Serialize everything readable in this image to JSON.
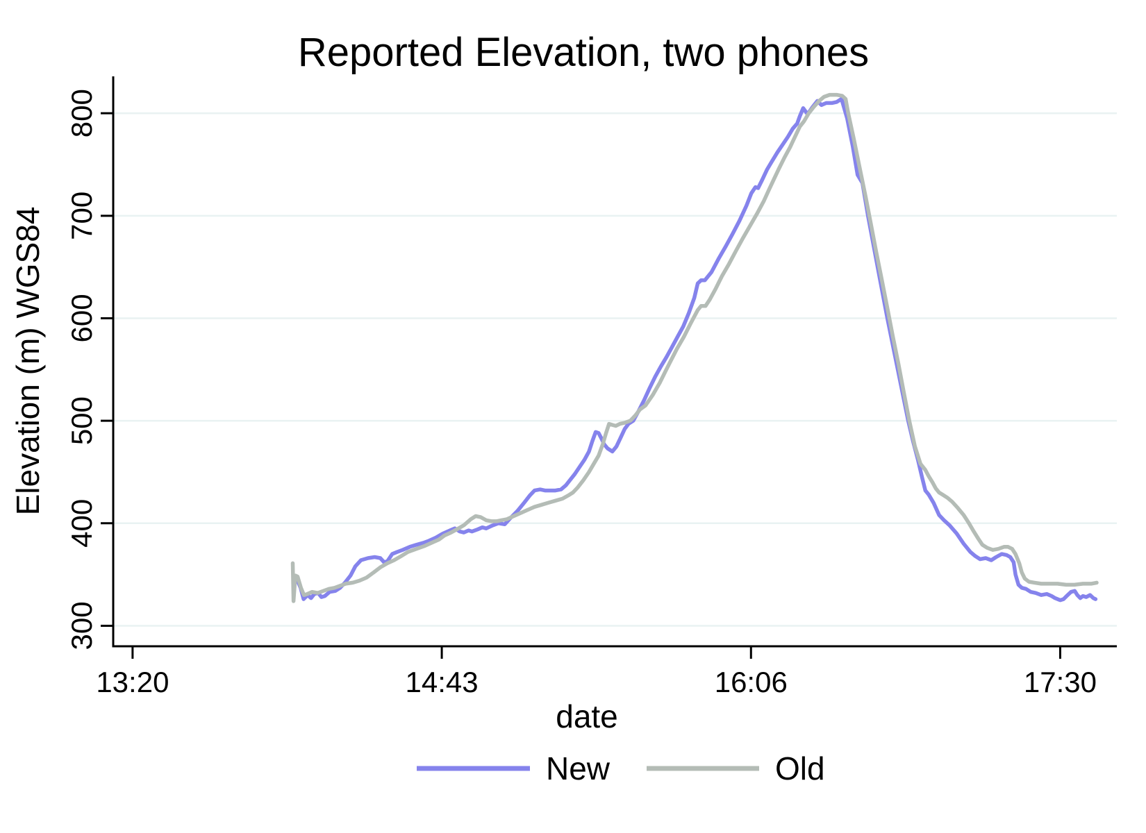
{
  "title": "Reported Elevation, two phones",
  "colors": {
    "title": "#1e3557",
    "axis": "#000000",
    "grid": "#e9f2f2",
    "new_line": "#8583ec",
    "old_line": "#b4bcb6"
  },
  "chart_data": {
    "type": "line",
    "title": "Reported Elevation, two phones",
    "xlabel": "date",
    "ylabel": "Elevation (m) WGS84",
    "x_unit": "minutes after 13:20",
    "xlim": [
      -5.2,
      264.2
    ],
    "ylim": [
      280,
      836
    ],
    "grid": true,
    "legend_position": "bottom",
    "x_ticks": [
      {
        "t": 0,
        "label": "13:20"
      },
      {
        "t": 83,
        "label": "14:43"
      },
      {
        "t": 166,
        "label": "16:06"
      },
      {
        "t": 249,
        "label": "17:30"
      }
    ],
    "y_ticks": [
      300,
      400,
      500,
      600,
      700,
      800
    ],
    "series": [
      {
        "name": "New",
        "color": "#8583ec",
        "points": [
          [
            44.4,
            343
          ],
          [
            45.1,
            337
          ],
          [
            45.9,
            326
          ],
          [
            47.0,
            330
          ],
          [
            47.9,
            327
          ],
          [
            48.8,
            331
          ],
          [
            49.8,
            332
          ],
          [
            50.7,
            328
          ],
          [
            51.6,
            329
          ],
          [
            52.9,
            333
          ],
          [
            54.4,
            334
          ],
          [
            55.7,
            337
          ],
          [
            57.0,
            342
          ],
          [
            58.5,
            349
          ],
          [
            59.8,
            358
          ],
          [
            61.3,
            364
          ],
          [
            63.2,
            366
          ],
          [
            65.0,
            367
          ],
          [
            66.5,
            366
          ],
          [
            67.5,
            362
          ],
          [
            68.4,
            363
          ],
          [
            69.7,
            370
          ],
          [
            71.0,
            372
          ],
          [
            72.5,
            374
          ],
          [
            74.4,
            377
          ],
          [
            76.2,
            379
          ],
          [
            78.1,
            381
          ],
          [
            79.6,
            383
          ],
          [
            81.4,
            386
          ],
          [
            83.3,
            390
          ],
          [
            85.2,
            393
          ],
          [
            86.5,
            395
          ],
          [
            87.8,
            392
          ],
          [
            88.9,
            391
          ],
          [
            90.2,
            393
          ],
          [
            91.1,
            392
          ],
          [
            92.6,
            394
          ],
          [
            93.9,
            396
          ],
          [
            94.9,
            395
          ],
          [
            96.7,
            398
          ],
          [
            98.2,
            400
          ],
          [
            99.9,
            399
          ],
          [
            101.4,
            405
          ],
          [
            103.3,
            412
          ],
          [
            105.1,
            420
          ],
          [
            106.6,
            427
          ],
          [
            107.9,
            432
          ],
          [
            109.4,
            433
          ],
          [
            110.7,
            432
          ],
          [
            112.2,
            432
          ],
          [
            113.5,
            432
          ],
          [
            115.0,
            433
          ],
          [
            116.3,
            437
          ],
          [
            117.6,
            443
          ],
          [
            118.7,
            448
          ],
          [
            120.0,
            455
          ],
          [
            121.3,
            462
          ],
          [
            122.5,
            470
          ],
          [
            123.4,
            480
          ],
          [
            124.3,
            489
          ],
          [
            125.1,
            488
          ],
          [
            125.8,
            483
          ],
          [
            126.6,
            477
          ],
          [
            127.5,
            473
          ],
          [
            128.8,
            470
          ],
          [
            129.9,
            475
          ],
          [
            131.2,
            485
          ],
          [
            132.1,
            492
          ],
          [
            133.1,
            497
          ],
          [
            134.4,
            500
          ],
          [
            135.9,
            510
          ],
          [
            137.3,
            520
          ],
          [
            138.8,
            532
          ],
          [
            140.3,
            543
          ],
          [
            141.8,
            553
          ],
          [
            143.3,
            562
          ],
          [
            144.8,
            572
          ],
          [
            146.3,
            582
          ],
          [
            147.8,
            592
          ],
          [
            149.3,
            605
          ],
          [
            150.8,
            620
          ],
          [
            151.7,
            634
          ],
          [
            152.6,
            637
          ],
          [
            153.6,
            637
          ],
          [
            155.4,
            645
          ],
          [
            157.3,
            658
          ],
          [
            159.2,
            670
          ],
          [
            161.0,
            682
          ],
          [
            162.9,
            695
          ],
          [
            164.8,
            710
          ],
          [
            166.1,
            722
          ],
          [
            167.2,
            728
          ],
          [
            167.9,
            727
          ],
          [
            169.0,
            735
          ],
          [
            170.3,
            745
          ],
          [
            171.6,
            753
          ],
          [
            173.1,
            762
          ],
          [
            174.6,
            770
          ],
          [
            175.9,
            777
          ],
          [
            177.2,
            785
          ],
          [
            178.4,
            790
          ],
          [
            179.1,
            797
          ],
          [
            180.0,
            805
          ],
          [
            181.2,
            799
          ],
          [
            182.5,
            806
          ],
          [
            183.8,
            812
          ],
          [
            184.9,
            808
          ],
          [
            186.2,
            810
          ],
          [
            187.7,
            810
          ],
          [
            189.0,
            811
          ],
          [
            190.3,
            814
          ],
          [
            191.8,
            795
          ],
          [
            193.3,
            768
          ],
          [
            194.6,
            740
          ],
          [
            195.9,
            732
          ],
          [
            197.4,
            700
          ],
          [
            200.0,
            650
          ],
          [
            202.6,
            600
          ],
          [
            205.4,
            550
          ],
          [
            208.2,
            500
          ],
          [
            209.5,
            480
          ],
          [
            210.8,
            462
          ],
          [
            211.9,
            445
          ],
          [
            212.8,
            432
          ],
          [
            213.7,
            428
          ],
          [
            215.0,
            420
          ],
          [
            216.5,
            408
          ],
          [
            217.8,
            403
          ],
          [
            219.3,
            398
          ],
          [
            221.2,
            390
          ],
          [
            223.1,
            380
          ],
          [
            224.9,
            372
          ],
          [
            226.2,
            368
          ],
          [
            227.5,
            365
          ],
          [
            229.0,
            366
          ],
          [
            230.5,
            364
          ],
          [
            231.8,
            367
          ],
          [
            233.3,
            370
          ],
          [
            234.6,
            369
          ],
          [
            235.6,
            367
          ],
          [
            236.5,
            362
          ],
          [
            237.0,
            350
          ],
          [
            237.8,
            340
          ],
          [
            238.7,
            337
          ],
          [
            239.8,
            336
          ],
          [
            241.1,
            333
          ],
          [
            242.4,
            332
          ],
          [
            243.9,
            330
          ],
          [
            245.4,
            331
          ],
          [
            246.7,
            329
          ],
          [
            247.6,
            327
          ],
          [
            249.0,
            325
          ],
          [
            249.9,
            326
          ],
          [
            251.0,
            330
          ],
          [
            251.9,
            333
          ],
          [
            252.9,
            334
          ],
          [
            253.6,
            330
          ],
          [
            254.4,
            327
          ],
          [
            255.1,
            329
          ],
          [
            256.0,
            328
          ],
          [
            257.0,
            330
          ],
          [
            257.9,
            327
          ],
          [
            258.5,
            326
          ]
        ]
      },
      {
        "name": "Old",
        "color": "#b4bcb6",
        "points": [
          [
            43.0,
            361
          ],
          [
            43.2,
            324
          ],
          [
            43.7,
            349
          ],
          [
            44.3,
            348
          ],
          [
            45.2,
            337
          ],
          [
            46.0,
            330
          ],
          [
            46.9,
            331
          ],
          [
            48.2,
            333
          ],
          [
            49.7,
            332
          ],
          [
            51.2,
            334
          ],
          [
            52.7,
            336
          ],
          [
            54.2,
            337
          ],
          [
            55.7,
            339
          ],
          [
            57.2,
            341
          ],
          [
            59.1,
            342
          ],
          [
            60.9,
            344
          ],
          [
            62.8,
            347
          ],
          [
            64.7,
            352
          ],
          [
            66.5,
            357
          ],
          [
            68.4,
            361
          ],
          [
            70.2,
            364
          ],
          [
            72.1,
            368
          ],
          [
            73.9,
            372
          ],
          [
            76.2,
            375
          ],
          [
            78.5,
            378
          ],
          [
            80.3,
            381
          ],
          [
            82.2,
            384
          ],
          [
            83.7,
            388
          ],
          [
            85.5,
            391
          ],
          [
            87.0,
            394
          ],
          [
            88.9,
            398
          ],
          [
            90.8,
            404
          ],
          [
            92.1,
            407
          ],
          [
            93.4,
            406
          ],
          [
            94.9,
            403
          ],
          [
            96.4,
            402
          ],
          [
            97.7,
            402
          ],
          [
            99.0,
            403
          ],
          [
            100.5,
            404
          ],
          [
            102.3,
            407
          ],
          [
            104.2,
            410
          ],
          [
            106.0,
            413
          ],
          [
            107.9,
            416
          ],
          [
            109.8,
            418
          ],
          [
            111.6,
            420
          ],
          [
            113.5,
            422
          ],
          [
            115.4,
            424
          ],
          [
            116.9,
            427
          ],
          [
            118.2,
            430
          ],
          [
            119.5,
            435
          ],
          [
            121.0,
            442
          ],
          [
            122.5,
            450
          ],
          [
            123.8,
            458
          ],
          [
            125.1,
            466
          ],
          [
            126.2,
            477
          ],
          [
            127.1,
            488
          ],
          [
            127.9,
            497
          ],
          [
            128.8,
            496
          ],
          [
            129.7,
            495
          ],
          [
            130.8,
            497
          ],
          [
            132.1,
            498
          ],
          [
            133.6,
            500
          ],
          [
            134.9,
            505
          ],
          [
            136.2,
            511
          ],
          [
            137.7,
            515
          ],
          [
            139.6,
            525
          ],
          [
            141.5,
            537
          ],
          [
            143.0,
            548
          ],
          [
            144.4,
            558
          ],
          [
            146.1,
            570
          ],
          [
            148.0,
            582
          ],
          [
            149.8,
            595
          ],
          [
            151.7,
            608
          ],
          [
            152.6,
            612
          ],
          [
            153.8,
            612
          ],
          [
            154.9,
            618
          ],
          [
            156.4,
            628
          ],
          [
            158.2,
            641
          ],
          [
            160.1,
            653
          ],
          [
            162.0,
            666
          ],
          [
            163.8,
            678
          ],
          [
            165.7,
            690
          ],
          [
            167.6,
            702
          ],
          [
            169.4,
            714
          ],
          [
            170.9,
            726
          ],
          [
            172.2,
            736
          ],
          [
            173.5,
            746
          ],
          [
            175.0,
            757
          ],
          [
            176.5,
            767
          ],
          [
            177.8,
            777
          ],
          [
            179.1,
            787
          ],
          [
            180.2,
            792
          ],
          [
            181.5,
            800
          ],
          [
            182.8,
            806
          ],
          [
            184.3,
            812
          ],
          [
            185.6,
            816
          ],
          [
            187.1,
            818
          ],
          [
            189.0,
            818
          ],
          [
            190.5,
            817
          ],
          [
            191.4,
            814
          ],
          [
            192.1,
            800
          ],
          [
            193.6,
            775
          ],
          [
            195.1,
            748
          ],
          [
            196.8,
            718
          ],
          [
            198.3,
            690
          ],
          [
            199.6,
            665
          ],
          [
            201.1,
            638
          ],
          [
            202.6,
            610
          ],
          [
            204.1,
            582
          ],
          [
            205.6,
            555
          ],
          [
            207.0,
            528
          ],
          [
            208.5,
            500
          ],
          [
            210.0,
            475
          ],
          [
            211.5,
            458
          ],
          [
            212.8,
            452
          ],
          [
            213.7,
            446
          ],
          [
            214.7,
            440
          ],
          [
            215.6,
            434
          ],
          [
            216.5,
            430
          ],
          [
            217.4,
            428
          ],
          [
            218.7,
            425
          ],
          [
            220.0,
            421
          ],
          [
            221.5,
            415
          ],
          [
            223.1,
            408
          ],
          [
            224.5,
            400
          ],
          [
            225.8,
            392
          ],
          [
            227.0,
            385
          ],
          [
            228.1,
            379
          ],
          [
            229.4,
            376
          ],
          [
            230.9,
            374
          ],
          [
            232.4,
            375
          ],
          [
            233.9,
            377
          ],
          [
            235.0,
            377
          ],
          [
            236.1,
            375
          ],
          [
            237.0,
            370
          ],
          [
            238.0,
            361
          ],
          [
            238.7,
            352
          ],
          [
            239.5,
            346
          ],
          [
            240.6,
            343
          ],
          [
            242.1,
            342
          ],
          [
            243.9,
            341
          ],
          [
            246.1,
            341
          ],
          [
            248.3,
            341
          ],
          [
            250.6,
            340
          ],
          [
            252.8,
            340
          ],
          [
            255.1,
            341
          ],
          [
            257.3,
            341
          ],
          [
            258.8,
            342
          ]
        ]
      }
    ]
  },
  "legend": {
    "new_label": "New",
    "old_label": "Old"
  }
}
